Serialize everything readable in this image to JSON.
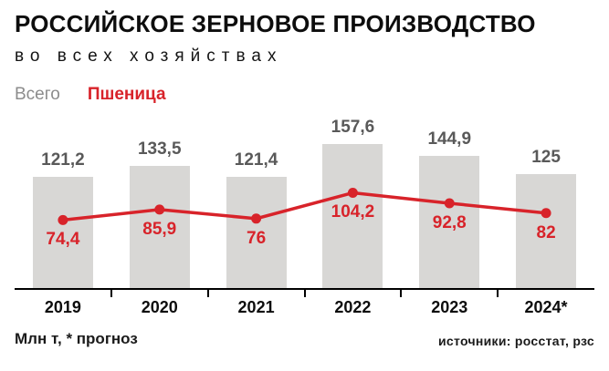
{
  "header": {
    "title": "РОССИЙСКОЕ ЗЕРНОВОЕ ПРОИЗВОДСТВО",
    "subtitle": "во всех хозяйствах"
  },
  "legend": {
    "total": "Всего",
    "wheat": "Пшеница"
  },
  "footer": {
    "note": "Млн т, * прогноз",
    "source": "источники: росстат, рзс"
  },
  "colors": {
    "bar": "#d8d7d5",
    "red": "#d8232a",
    "bar_value_label": "#595959",
    "axis": "#000000"
  },
  "chart_data": {
    "type": "bar",
    "title": "РОССИЙСКОЕ ЗЕРНОВОЕ ПРОИЗВОДСТВО",
    "subtitle": "во всех хозяйствах",
    "unit": "Млн т",
    "categories": [
      "2019",
      "2020",
      "2021",
      "2022",
      "2023",
      "2024*"
    ],
    "series": [
      {
        "name": "Всего",
        "type": "bar",
        "color": "#d8d7d5",
        "values": [
          121.2,
          133.5,
          121.4,
          157.6,
          144.9,
          125
        ],
        "labels": [
          "121,2",
          "133,5",
          "121,4",
          "157,6",
          "144,9",
          "125"
        ]
      },
      {
        "name": "Пшеница",
        "type": "line",
        "color": "#d8232a",
        "values": [
          74.4,
          85.9,
          76,
          104.2,
          92.8,
          82
        ],
        "labels": [
          "74,4",
          "85,9",
          "76",
          "104,2",
          "92,8",
          "82"
        ]
      }
    ],
    "ylim": [
      0,
      160
    ],
    "grid": false,
    "legend_position": "top-left",
    "note": "* прогноз"
  }
}
